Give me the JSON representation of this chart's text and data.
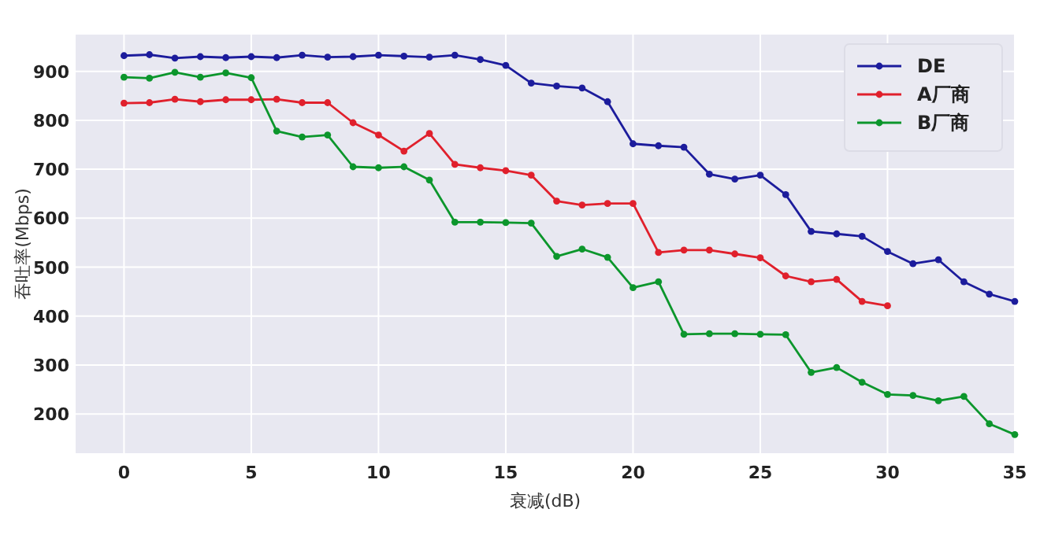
{
  "chart_data": {
    "type": "line",
    "xlabel": "衰减(dB)",
    "ylabel": "吞吐率(Mbps)",
    "xlim": [
      -1.9,
      35
    ],
    "xticks": [
      0,
      5,
      10,
      15,
      20,
      25,
      30,
      35
    ],
    "ylim": [
      120,
      975
    ],
    "yticks": [
      200,
      300,
      400,
      500,
      600,
      700,
      800,
      900
    ],
    "grid": true,
    "legend": "top right",
    "marker": "circle",
    "line_style": "solid",
    "series": [
      {
        "name": "DE",
        "color": "#1c1c9c",
        "x": [
          0,
          1,
          2,
          3,
          4,
          5,
          6,
          7,
          8,
          9,
          10,
          11,
          12,
          13,
          14,
          15,
          16,
          17,
          18,
          19,
          20,
          21,
          22,
          23,
          24,
          25,
          26,
          27,
          28,
          29,
          30,
          31,
          32,
          33,
          34,
          35
        ],
        "values": [
          932,
          934,
          927,
          930,
          928,
          930,
          928,
          933,
          929,
          930,
          933,
          931,
          929,
          933,
          924,
          912,
          876,
          870,
          866,
          838,
          752,
          748,
          745,
          690,
          680,
          688,
          648,
          573,
          568,
          563,
          532,
          507,
          515,
          470,
          445,
          430
        ]
      },
      {
        "name": "A厂商",
        "color": "#e0202c",
        "x": [
          0,
          1,
          2,
          3,
          4,
          5,
          6,
          7,
          8,
          9,
          10,
          11,
          12,
          13,
          14,
          15,
          16,
          17,
          18,
          19,
          20,
          21,
          22,
          23,
          24,
          25,
          26,
          27,
          28,
          29,
          30
        ],
        "values": [
          835,
          836,
          843,
          838,
          842,
          842,
          843,
          836,
          836,
          795,
          770,
          737,
          773,
          710,
          703,
          697,
          688,
          635,
          627,
          630,
          630,
          530,
          535,
          535,
          527,
          519,
          482,
          470,
          475,
          430,
          421
        ]
      },
      {
        "name": "B厂商",
        "color": "#0c962c",
        "x": [
          0,
          1,
          2,
          3,
          4,
          5,
          6,
          7,
          8,
          9,
          10,
          11,
          12,
          13,
          14,
          15,
          16,
          17,
          18,
          19,
          20,
          21,
          22,
          23,
          24,
          25,
          26,
          27,
          28,
          29,
          30,
          31,
          32,
          33,
          34,
          35
        ],
        "values": [
          888,
          886,
          898,
          888,
          897,
          887,
          778,
          766,
          770,
          705,
          703,
          705,
          678,
          592,
          592,
          591,
          590,
          522,
          537,
          520,
          458,
          470,
          363,
          364,
          364,
          363,
          362,
          285,
          295,
          265,
          240,
          238,
          227,
          236,
          180,
          158
        ]
      }
    ]
  }
}
